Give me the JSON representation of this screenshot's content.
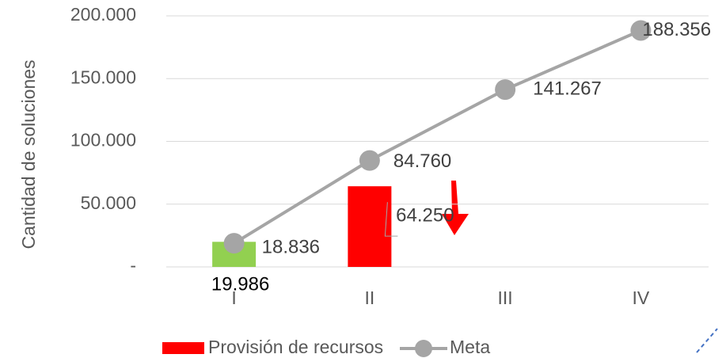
{
  "chart_data": {
    "type": "bar_line",
    "y_label": "Cantidad de soluciones",
    "categories": [
      "I",
      "II",
      "III",
      "IV"
    ],
    "ylim": [
      0,
      200000
    ],
    "yticks": [
      {
        "value": 0,
        "label": "-"
      },
      {
        "value": 50000,
        "label": "50.000"
      },
      {
        "value": 100000,
        "label": "100.000"
      },
      {
        "value": 150000,
        "label": "150.000"
      },
      {
        "value": 200000,
        "label": "200.000"
      }
    ],
    "grid": true,
    "legend": "bottom",
    "series": [
      {
        "name": "Provisión de recursos",
        "type": "bar",
        "color": "#ff0000",
        "point_colors": [
          "#92d050",
          "#ff0000"
        ],
        "values": [
          19986,
          64250,
          null,
          null
        ],
        "value_labels": [
          "19.986",
          "64.250",
          null,
          null
        ]
      },
      {
        "name": "Meta",
        "type": "line",
        "color": "#a5a5a5",
        "values": [
          18836,
          84760,
          141267,
          188356
        ],
        "value_labels": [
          "18.836",
          "84.760",
          "141.267",
          "188.356"
        ]
      }
    ]
  }
}
